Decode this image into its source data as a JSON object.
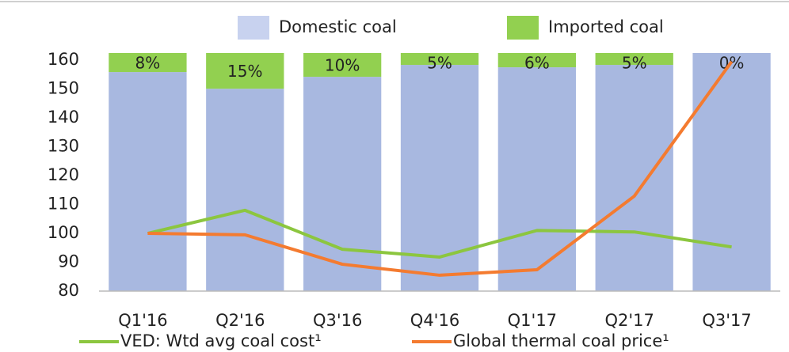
{
  "chart_data": {
    "type": "bar",
    "categories": [
      "Q1'16",
      "Q2'16",
      "Q3'16",
      "Q4'16",
      "Q1'17",
      "Q2'17",
      "Q3'17"
    ],
    "series": [
      {
        "name": "Domestic coal",
        "type": "bar",
        "axis": "y2",
        "color": "#a8b8e0",
        "values": [
          92,
          85,
          90,
          95,
          94,
          95,
          100
        ]
      },
      {
        "name": "Imported coal",
        "type": "bar",
        "axis": "y2",
        "color": "#92d050",
        "values": [
          8,
          15,
          10,
          5,
          6,
          5,
          0
        ],
        "value_labels": [
          "8%",
          "15%",
          "10%",
          "5%",
          "6%",
          "5%",
          "0%"
        ]
      },
      {
        "name": "VED: Wtd avg coal cost¹",
        "type": "line",
        "axis": "y",
        "color": "#8cc63f",
        "values": [
          100,
          108,
          94.5,
          91.8,
          101,
          100.5,
          95.3
        ]
      },
      {
        "name": "Global thermal coal price¹",
        "type": "line",
        "axis": "y",
        "color": "#f47b30",
        "values": [
          100,
          99.5,
          89.3,
          85.5,
          87.4,
          112.9,
          159.5
        ]
      }
    ],
    "ylim": [
      80,
      162.5
    ],
    "yticks": [
      80,
      90,
      100,
      110,
      120,
      130,
      140,
      150,
      160
    ],
    "y2lim": [
      0,
      100
    ]
  }
}
